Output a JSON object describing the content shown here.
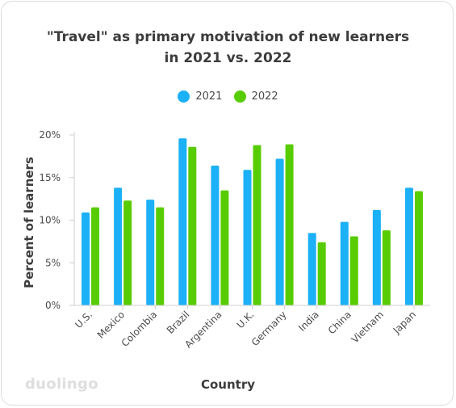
{
  "chart_data": {
    "type": "bar",
    "title": "\"Travel\" as primary motivation of new learners in 2021 vs. 2022",
    "title_lines": [
      "\"Travel\" as primary motivation of new learners",
      "in 2021 vs. 2022"
    ],
    "xlabel": "Country",
    "ylabel": "Percent of learners",
    "categories": [
      "U.S.",
      "Mexico",
      "Colombia",
      "Brazil",
      "Argentina",
      "U.K.",
      "Germany",
      "India",
      "China",
      "Vietnam",
      "Japan"
    ],
    "series": [
      {
        "name": "2021",
        "color": "#1cb0f6",
        "values": [
          10.9,
          13.8,
          12.4,
          19.6,
          16.4,
          15.9,
          17.2,
          8.5,
          9.8,
          11.2,
          13.8
        ]
      },
      {
        "name": "2022",
        "color": "#58cc02",
        "values": [
          11.5,
          12.3,
          11.5,
          18.6,
          13.5,
          18.8,
          18.9,
          7.4,
          8.1,
          8.8,
          13.4
        ]
      }
    ],
    "ylim": [
      0,
      20
    ],
    "yticks": [
      0,
      5,
      10,
      15,
      20
    ],
    "ytick_labels": [
      "0%",
      "5%",
      "10%",
      "15%",
      "20%"
    ],
    "legend_position": "top-center",
    "grid": false
  },
  "brand": {
    "logo_text": "duolingo"
  }
}
